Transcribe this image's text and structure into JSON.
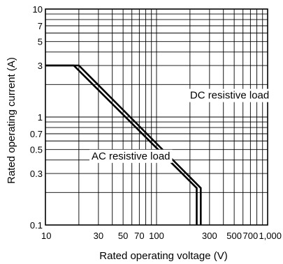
{
  "chart_data": {
    "type": "line",
    "x_scale": "log",
    "y_scale": "log",
    "xlabel": "Rated operating voltage (V)",
    "ylabel": "Rated operating current (A)",
    "xlim": [
      10,
      1000
    ],
    "ylim": [
      0.1,
      10
    ],
    "grid": true,
    "x_ticks": [
      {
        "value": 10,
        "label": "10"
      },
      {
        "value": 30,
        "label": "30"
      },
      {
        "value": 50,
        "label": "50"
      },
      {
        "value": 70,
        "label": "70"
      },
      {
        "value": 100,
        "label": "100"
      },
      {
        "value": 300,
        "label": "300"
      },
      {
        "value": 500,
        "label": "500"
      },
      {
        "value": 700,
        "label": "700"
      },
      {
        "value": 1000,
        "label": "1,000"
      }
    ],
    "y_ticks": [
      {
        "value": 0.1,
        "label": "0.1"
      },
      {
        "value": 0.3,
        "label": "0.3"
      },
      {
        "value": 0.5,
        "label": "0.5"
      },
      {
        "value": 0.7,
        "label": "0.7"
      },
      {
        "value": 1,
        "label": "1"
      },
      {
        "value": 3,
        "label": "3"
      },
      {
        "value": 5,
        "label": "5"
      },
      {
        "value": 7,
        "label": "7"
      },
      {
        "value": 10,
        "label": "10"
      }
    ],
    "series": [
      {
        "name": "DC resistive load",
        "points": [
          [
            10,
            3
          ],
          [
            20,
            3
          ],
          [
            250,
            0.22
          ],
          [
            250,
            0.1
          ]
        ]
      },
      {
        "name": "AC resistive load",
        "points": [
          [
            10,
            3
          ],
          [
            18,
            3
          ],
          [
            230,
            0.22
          ],
          [
            230,
            0.1
          ]
        ]
      }
    ],
    "annotations": [
      {
        "text": "DC resistive load",
        "x": 200,
        "y": 1.48
      },
      {
        "text": "AC resistive load",
        "x": 26,
        "y": 0.405
      }
    ]
  }
}
